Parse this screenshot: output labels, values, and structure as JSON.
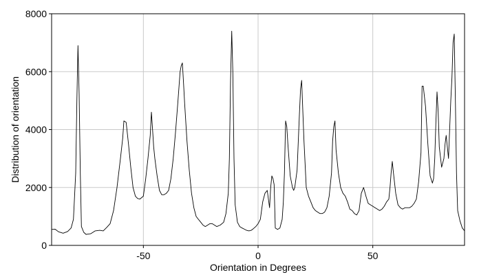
{
  "chart_data": {
    "type": "line",
    "title": "",
    "xlabel": "Orientation in Degrees",
    "ylabel": "Distribution of orientation",
    "xlim": [
      -90,
      90
    ],
    "ylim": [
      0,
      8000
    ],
    "xticks": [
      -50,
      0,
      50
    ],
    "yticks": [
      0,
      2000,
      4000,
      6000,
      8000
    ],
    "xtick_labels": [
      "-50",
      "0",
      "50"
    ],
    "ytick_labels": [
      "0",
      "2000",
      "4000",
      "6000",
      "8000"
    ],
    "grid": true,
    "series": [
      {
        "color": "#000000",
        "x": [
          -90,
          -88.5,
          -87,
          -85,
          -83,
          -81.5,
          -80.5,
          -79.5,
          -79,
          -78.5,
          -78,
          -77.5,
          -77,
          -76,
          -75,
          -73,
          -71,
          -69,
          -67.5,
          -66,
          -64.5,
          -63,
          -61.5,
          -60,
          -59,
          -58.5,
          -57.5,
          -56.5,
          -55.5,
          -54.5,
          -53.5,
          -52.5,
          -51.5,
          -50,
          -49,
          -48,
          -47,
          -46.5,
          -46,
          -45.5,
          -45,
          -44,
          -43,
          -42,
          -41,
          -40,
          -39,
          -38,
          -37,
          -36,
          -35,
          -34,
          -33.5,
          -33,
          -32.5,
          -32,
          -31,
          -30,
          -29,
          -28,
          -27,
          -26,
          -25,
          -24,
          -23,
          -22,
          -21,
          -20,
          -19,
          -18,
          -16.5,
          -15,
          -14,
          -13,
          -12.5,
          -12,
          -11.5,
          -11,
          -10.5,
          -10,
          -9,
          -8,
          -7,
          -6,
          -5,
          -4,
          -3,
          -2,
          -1,
          0,
          1,
          2,
          3,
          4,
          4.5,
          5,
          5.5,
          6,
          6.5,
          7,
          7.5,
          8.5,
          9.5,
          10.5,
          11,
          11.5,
          12,
          12.5,
          13,
          14,
          15,
          15.5,
          16,
          17,
          18,
          18.5,
          19,
          20,
          21,
          22,
          23,
          24,
          25,
          26,
          27,
          28,
          29,
          30,
          31,
          32,
          32.5,
          33,
          33.5,
          34,
          35,
          36,
          37,
          38,
          39,
          40,
          41,
          42,
          43,
          44,
          44.5,
          45,
          46,
          47,
          48,
          49,
          50,
          51,
          52,
          53,
          54,
          55,
          56,
          57,
          57.5,
          58,
          58.5,
          59,
          60,
          61,
          62,
          63,
          64,
          65,
          66,
          67,
          68,
          69,
          70,
          71,
          71.5,
          72,
          73,
          74,
          75,
          76,
          76.5,
          77,
          77.5,
          78,
          78.5,
          79,
          80,
          81,
          81.5,
          82,
          82.5,
          83,
          84,
          84.5,
          85,
          85.5,
          86,
          86.5,
          87,
          88,
          89,
          90
        ],
        "y": [
          550,
          560,
          470,
          420,
          480,
          600,
          900,
          2500,
          5000,
          6900,
          5200,
          2500,
          650,
          450,
          380,
          400,
          500,
          520,
          500,
          620,
          750,
          1200,
          2000,
          3000,
          3700,
          4300,
          4250,
          3500,
          2700,
          2000,
          1700,
          1620,
          1600,
          1700,
          2300,
          3000,
          3800,
          4600,
          4000,
          3400,
          3000,
          2400,
          1900,
          1750,
          1750,
          1800,
          1900,
          2300,
          3000,
          3900,
          4900,
          6000,
          6200,
          6300,
          5600,
          4900,
          3600,
          2600,
          1800,
          1300,
          1000,
          900,
          800,
          700,
          650,
          700,
          750,
          750,
          700,
          650,
          700,
          800,
          1100,
          1800,
          3000,
          5700,
          7400,
          6000,
          3000,
          1400,
          800,
          650,
          600,
          560,
          520,
          500,
          520,
          580,
          650,
          750,
          900,
          1500,
          1800,
          1900,
          1600,
          1300,
          2000,
          2400,
          2300,
          2100,
          600,
          550,
          600,
          900,
          1500,
          2500,
          4300,
          4100,
          3500,
          2400,
          2000,
          1900,
          2000,
          2600,
          4500,
          5400,
          5700,
          3600,
          2000,
          1700,
          1500,
          1300,
          1200,
          1150,
          1100,
          1100,
          1150,
          1300,
          1700,
          2500,
          3600,
          4100,
          4300,
          3300,
          2500,
          2000,
          1800,
          1700,
          1500,
          1250,
          1200,
          1100,
          1050,
          1200,
          1500,
          1800,
          2000,
          1700,
          1450,
          1400,
          1350,
          1300,
          1250,
          1200,
          1250,
          1350,
          1500,
          1600,
          2000,
          2500,
          2900,
          2500,
          1800,
          1400,
          1300,
          1250,
          1300,
          1300,
          1300,
          1350,
          1450,
          1600,
          2200,
          3200,
          5500,
          5500,
          4800,
          3500,
          2400,
          2150,
          2300,
          3000,
          4200,
          5300,
          4600,
          3400,
          2700,
          3000,
          3500,
          3800,
          3400,
          3000,
          5000,
          5800,
          7000,
          7300,
          5000,
          2500,
          1200,
          850,
          600,
          500
        ]
      }
    ]
  }
}
